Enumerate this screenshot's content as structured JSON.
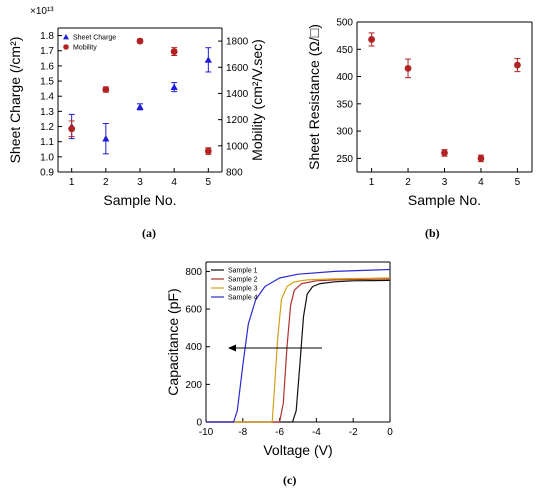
{
  "chart_data": [
    {
      "panel": "(a)",
      "type": "scatter",
      "xlabel": "Sample No.",
      "x_ticks": [
        "1",
        "2",
        "3",
        "4",
        "5"
      ],
      "xlim": [
        0.6,
        5.4
      ],
      "left_axis": {
        "label": "Sheet Charge (/cm²)",
        "multiplier": "×10¹³",
        "ylim": [
          0.9,
          1.85
        ],
        "ticks": [
          "0.9",
          "1.0",
          "1.1",
          "1.2",
          "1.3",
          "1.4",
          "1.5",
          "1.6",
          "1.7",
          "1.8"
        ],
        "color": "#1f1fd6"
      },
      "right_axis": {
        "label": "Mobility (cm²/V.sec)",
        "ylim": [
          800,
          1900
        ],
        "ticks": [
          "800",
          "1000",
          "1200",
          "1400",
          "1600",
          "1800"
        ],
        "color": "#c0392b"
      },
      "legend": [
        "Sheet Charge",
        "Mobility"
      ],
      "series": [
        {
          "name": "Sheet Charge",
          "axis": "left",
          "marker": "triangle",
          "color": "#1f1fd6",
          "x": [
            1,
            2,
            3,
            4,
            5
          ],
          "y": [
            1.2,
            1.12,
            1.33,
            1.46,
            1.64
          ],
          "err": [
            0.08,
            0.1,
            0.02,
            0.03,
            0.08
          ]
        },
        {
          "name": "Mobility",
          "axis": "right",
          "marker": "circle",
          "color": "#b22222",
          "x": [
            1,
            2,
            3,
            4,
            5
          ],
          "y": [
            1130,
            1430,
            1800,
            1720,
            960
          ],
          "err": [
            60,
            20,
            15,
            30,
            25
          ]
        }
      ]
    },
    {
      "panel": "(b)",
      "type": "scatter",
      "xlabel": "Sample No.",
      "ylabel": "Sheet Resistance (Ω/□)",
      "x_ticks": [
        "1",
        "2",
        "3",
        "4",
        "5"
      ],
      "xlim": [
        0.6,
        5.4
      ],
      "ylim": [
        225,
        500
      ],
      "y_ticks": [
        "250",
        "300",
        "350",
        "400",
        "450",
        "500"
      ],
      "series": [
        {
          "marker": "circle",
          "color": "#b22222",
          "x": [
            1,
            2,
            3,
            4,
            5
          ],
          "y": [
            468,
            415,
            260,
            250,
            421
          ],
          "err": [
            12,
            17,
            6,
            6,
            12
          ]
        }
      ]
    },
    {
      "panel": "(c)",
      "type": "line",
      "xlabel": "Voltage (V)",
      "ylabel": "Capacitance (pF)",
      "xlim": [
        -10,
        0
      ],
      "ylim": [
        0,
        850
      ],
      "x_ticks": [
        "-10",
        "-8",
        "-6",
        "-4",
        "-2",
        "0"
      ],
      "y_ticks": [
        "0",
        "200",
        "400",
        "600",
        "800"
      ],
      "legend": [
        "Sample 1",
        "Sample 2",
        "Sample 3",
        "Sample 4"
      ],
      "series": [
        {
          "name": "Sample 1",
          "color": "#111111",
          "x": [
            -10,
            -5.3,
            -5.1,
            -4.9,
            -4.7,
            -4.5,
            -4.2,
            -3.8,
            -3,
            -2,
            0
          ],
          "y": [
            0,
            0,
            60,
            300,
            560,
            680,
            720,
            735,
            745,
            750,
            752
          ]
        },
        {
          "name": "Sample 2",
          "color": "#b03030",
          "x": [
            -10,
            -6.0,
            -5.8,
            -5.6,
            -5.4,
            -5.2,
            -4.8,
            -4,
            -3,
            0
          ],
          "y": [
            0,
            0,
            100,
            400,
            620,
            700,
            735,
            750,
            755,
            760
          ]
        },
        {
          "name": "Sample 3",
          "color": "#d4a017",
          "x": [
            -10,
            -6.4,
            -6.3,
            -6.1,
            -5.9,
            -5.6,
            -5.2,
            -4.5,
            -3,
            0
          ],
          "y": [
            0,
            0,
            150,
            450,
            650,
            720,
            745,
            755,
            760,
            765
          ]
        },
        {
          "name": "Sample 4",
          "color": "#2b2bd6",
          "x": [
            -10,
            -8.5,
            -8.3,
            -8.0,
            -7.7,
            -7.3,
            -6.8,
            -6,
            -5,
            -3,
            0
          ],
          "y": [
            0,
            0,
            60,
            300,
            520,
            650,
            720,
            765,
            785,
            800,
            810
          ]
        }
      ]
    }
  ],
  "sublabels": [
    "(a)",
    "(b)",
    "(c)"
  ]
}
